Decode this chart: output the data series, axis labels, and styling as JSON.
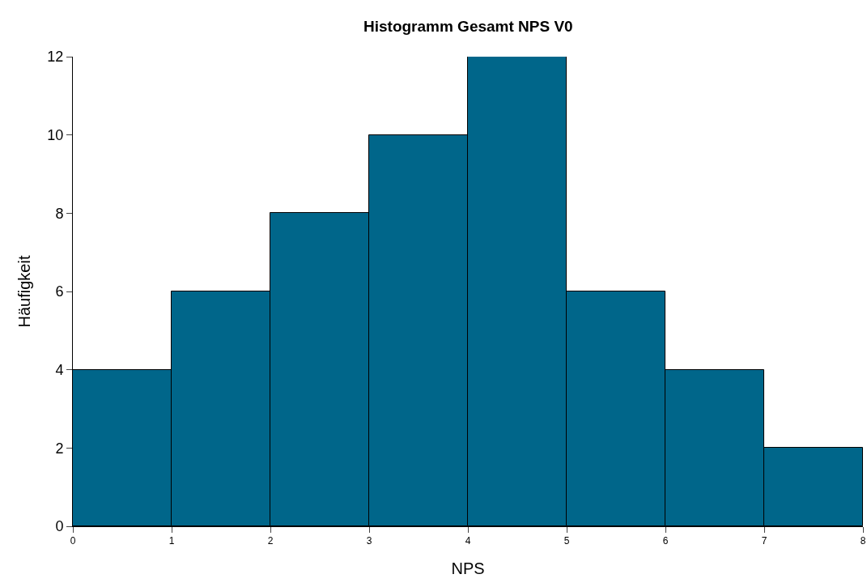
{
  "chart_data": {
    "type": "histogram",
    "title": "Histogramm Gesamt NPS V0",
    "xlabel": "NPS",
    "ylabel": "Häufigkeit",
    "bins": [
      0,
      1,
      2,
      3,
      4,
      5,
      6,
      7,
      8
    ],
    "values": [
      4,
      6,
      8,
      10,
      12,
      6,
      4,
      2
    ],
    "color": "#00668a",
    "xlim": [
      0,
      8
    ],
    "xticks": [
      0,
      1,
      2,
      3,
      4,
      5,
      6,
      7,
      8
    ],
    "ylim": [
      0,
      12
    ],
    "yticks": [
      0,
      2,
      4,
      6,
      8,
      10,
      12
    ],
    "grid": false
  }
}
